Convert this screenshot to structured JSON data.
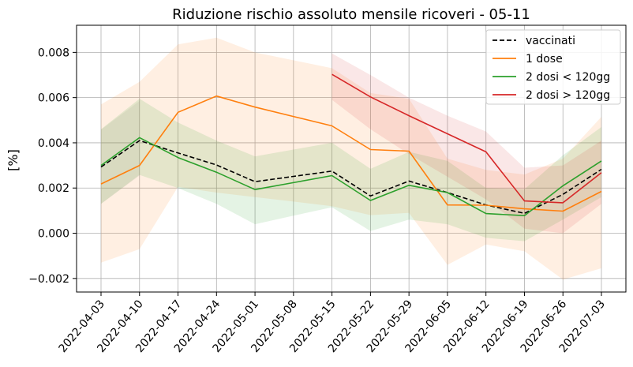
{
  "chart_data": {
    "type": "line",
    "title": "Riduzione rischio assoluto mensile ricoveri - 05-11",
    "xlabel": "",
    "ylabel": "[%]",
    "grid": true,
    "legend_position": "top-right",
    "x": [
      "2022-04-03",
      "2022-04-10",
      "2022-04-17",
      "2022-04-24",
      "2022-05-01",
      "2022-05-08",
      "2022-05-15",
      "2022-05-22",
      "2022-05-29",
      "2022-06-05",
      "2022-06-12",
      "2022-06-19",
      "2022-06-26",
      "2022-07-03"
    ],
    "ylim": [
      -0.0026,
      0.0092
    ],
    "yticks": [
      {
        "value": -0.002,
        "label": "−0.002"
      },
      {
        "value": 0.0,
        "label": "0.000"
      },
      {
        "value": 0.002,
        "label": "0.002"
      },
      {
        "value": 0.004,
        "label": "0.004"
      },
      {
        "value": 0.006,
        "label": "0.006"
      },
      {
        "value": 0.008,
        "label": "0.008"
      }
    ],
    "series": [
      {
        "name": "vaccinati",
        "color": "#000000",
        "dash": true,
        "values": [
          0.00293,
          0.0041,
          0.00355,
          0.00302,
          0.00228,
          null,
          0.00275,
          0.00165,
          0.00231,
          0.0018,
          0.00125,
          0.00088,
          0.00172,
          0.00283
        ],
        "lower": [
          0.0013,
          0.00255,
          null,
          null,
          null,
          null,
          null,
          null,
          null,
          null,
          null,
          null,
          null,
          null
        ],
        "upper": [
          0.00458,
          0.00585,
          null,
          null,
          null,
          null,
          null,
          null,
          null,
          null,
          null,
          null,
          null,
          null
        ],
        "band_color": "#7f7f7f",
        "band_opacity": 0.1
      },
      {
        "name": "1 dose",
        "color": "#ff7f0e",
        "dash": false,
        "values": [
          0.00218,
          0.003,
          0.00535,
          0.00607,
          0.00558,
          null,
          0.00475,
          0.0037,
          0.00363,
          0.00125,
          0.00124,
          0.00108,
          0.00098,
          0.00185
        ],
        "lower": [
          -0.0013,
          -0.0007,
          0.00205,
          0.0018,
          0.0016,
          null,
          0.0012,
          0.0008,
          0.0009,
          -0.0014,
          -0.0005,
          -0.0008,
          -0.00205,
          -0.00155
        ],
        "upper": [
          0.0057,
          0.0067,
          0.00835,
          0.00865,
          0.008,
          null,
          0.0073,
          0.0062,
          0.00595,
          0.0033,
          0.0028,
          0.0026,
          0.0033,
          0.00515
        ],
        "band_color": "#ff7f0e",
        "band_opacity": 0.12
      },
      {
        "name": "2 dosi < 120gg",
        "color": "#2ca02c",
        "dash": false,
        "values": [
          0.003,
          0.00423,
          0.00335,
          0.0027,
          0.00193,
          null,
          0.00255,
          0.00145,
          0.00212,
          0.0018,
          0.00087,
          0.00078,
          0.0021,
          0.0032
        ],
        "lower": [
          0.0013,
          0.00258,
          0.002,
          0.0013,
          0.0004,
          null,
          0.00115,
          0.0001,
          0.0006,
          0.0004,
          -0.0002,
          -0.00035,
          0.0006,
          0.0016
        ],
        "upper": [
          0.0046,
          0.00595,
          0.0049,
          0.0041,
          0.0034,
          null,
          0.004,
          0.00285,
          0.0036,
          0.0032,
          0.002,
          0.00195,
          0.00345,
          0.0047
        ],
        "band_color": "#2ca02c",
        "band_opacity": 0.13
      },
      {
        "name": "2 dosi > 120gg",
        "color": "#d62728",
        "dash": false,
        "values": [
          null,
          null,
          null,
          null,
          null,
          null,
          0.00703,
          0.00603,
          0.0052,
          0.0044,
          0.0036,
          0.00143,
          0.00135,
          0.00268
        ],
        "lower": [
          null,
          null,
          null,
          null,
          null,
          null,
          0.0059,
          0.0046,
          0.0035,
          0.0025,
          0.0015,
          0.0002,
          0.0,
          0.0013
        ],
        "upper": [
          null,
          null,
          null,
          null,
          null,
          null,
          0.00795,
          0.007,
          0.006,
          0.0052,
          0.0045,
          0.0029,
          0.003,
          0.0041
        ],
        "band_color": "#d62728",
        "band_opacity": 0.11
      }
    ]
  }
}
